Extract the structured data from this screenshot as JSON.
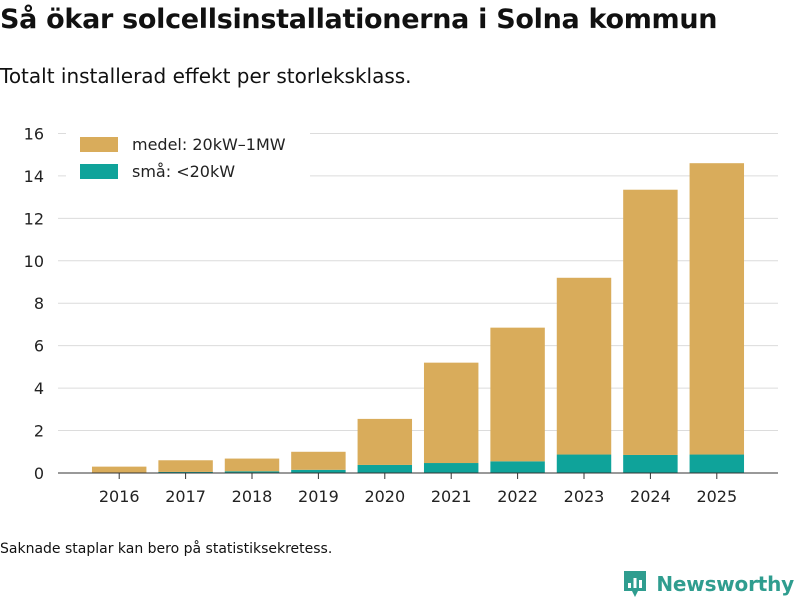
{
  "title": "Så ökar solcellsinstallationerna i Solna kommun",
  "subtitle": "Totalt installerad effekt per storleksklass.",
  "note": "Saknade staplar kan bero på statistiksekretess.",
  "brand": {
    "name": "Newsworthy",
    "icon": "newsworthy-logo-icon",
    "color": "#2f9d8f"
  },
  "chart_data": {
    "type": "bar",
    "stacked": true,
    "categories": [
      "2016",
      "2017",
      "2018",
      "2019",
      "2020",
      "2021",
      "2022",
      "2023",
      "2024",
      "2025"
    ],
    "series": [
      {
        "name": "små: <20kW",
        "color": "#0fa39a",
        "values": [
          0.02,
          0.05,
          0.08,
          0.15,
          0.38,
          0.47,
          0.55,
          0.87,
          0.85,
          0.87
        ]
      },
      {
        "name": "medel: 20kW–1MW",
        "color": "#d9ac5b",
        "values": [
          0.28,
          0.55,
          0.6,
          0.85,
          2.17,
          4.73,
          6.3,
          8.33,
          12.5,
          13.73
        ]
      }
    ],
    "legend_order": [
      1,
      0
    ],
    "yticks": [
      0,
      2,
      4,
      6,
      8,
      10,
      12,
      14,
      16
    ],
    "ylim": [
      0,
      16.4
    ],
    "grid": true,
    "legend_position": "top-left",
    "xlabel": "",
    "ylabel": ""
  }
}
